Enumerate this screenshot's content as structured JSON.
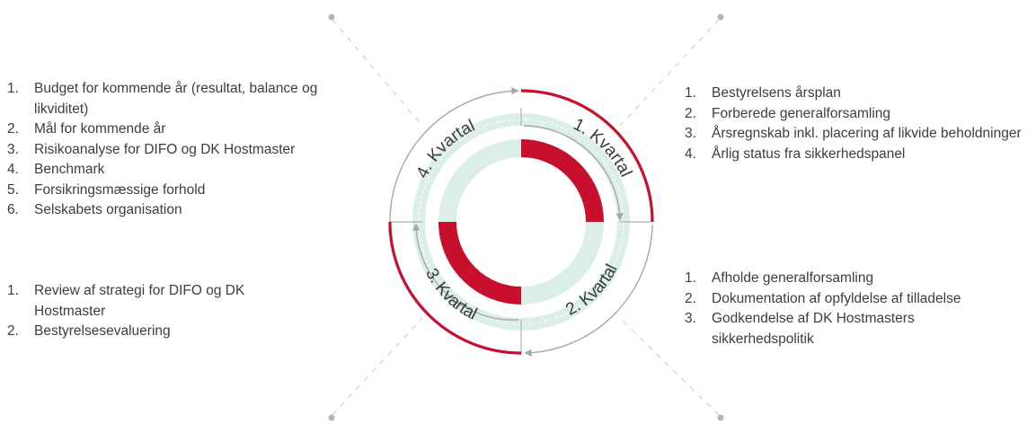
{
  "quarters": {
    "q1": "1. Kvartal",
    "q2": "2. Kvartal",
    "q3": "3. Kvartal",
    "q4": "4. Kvartal"
  },
  "lists": {
    "q4": [
      {
        "num": "1.",
        "text": "Budget for kommende år (resultat, balance og likviditet)"
      },
      {
        "num": "2.",
        "text": "Mål for kommende år"
      },
      {
        "num": "3.",
        "text": "Risikoanalyse for DIFO og DK Hostmaster"
      },
      {
        "num": "4.",
        "text": "Benchmark"
      },
      {
        "num": "5.",
        "text": "Forsikringsmæssige  forhold"
      },
      {
        "num": "6.",
        "text": "Selskabets organisation"
      }
    ],
    "q3": [
      {
        "num": "1.",
        "text": "Review af strategi for DIFO og DK Hostmaster"
      },
      {
        "num": "2.",
        "text": "Bestyrelsesevaluering"
      }
    ],
    "q1": [
      {
        "num": "1.",
        "text": "Bestyrelsens årsplan"
      },
      {
        "num": "2.",
        "text": "Forberede generalforsamling"
      },
      {
        "num": "3.",
        "text": "Årsregnskab inkl. placering af likvide beholdninger"
      },
      {
        "num": "4.",
        "text": "Årlig status fra sikkerhedspanel"
      }
    ],
    "q2": [
      {
        "num": "1.",
        "text": "Afholde generalforsamling"
      },
      {
        "num": "2.",
        "text": "Dokumentation af opfyldelse af tilladelse"
      },
      {
        "num": "3.",
        "text": "Godkendelse af DK Hostmasters sikkerhedspolitik"
      }
    ]
  },
  "colors": {
    "accent_red": "#c8102e",
    "soft_green": "#d9efe6",
    "arrow_gray": "#a8a8a8",
    "dash_gray": "#c4c4c4"
  }
}
